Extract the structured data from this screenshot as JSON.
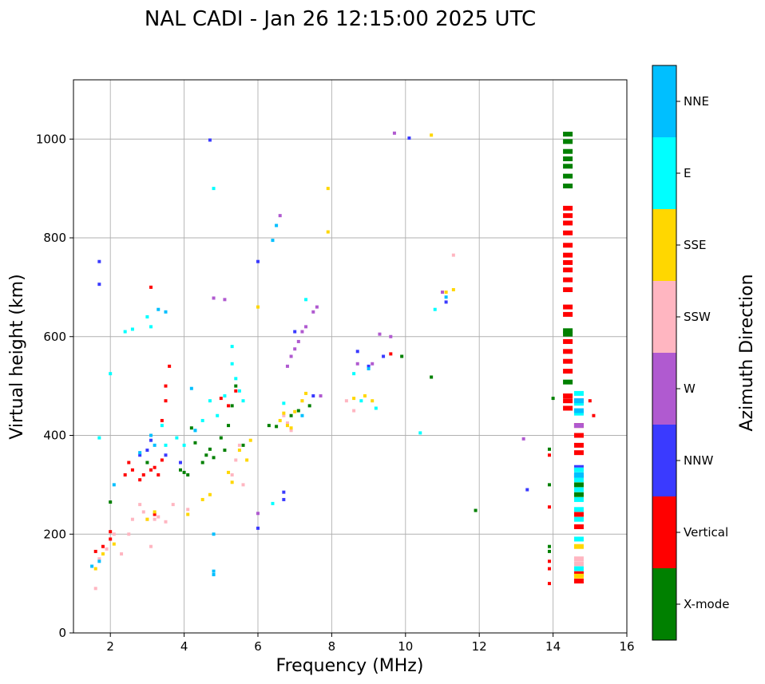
{
  "chart_data": {
    "type": "scatter",
    "title": "NAL CADI - Jan 26 12:15:00 2025 UTC",
    "xlabel": "Frequency (MHz)",
    "ylabel": "Virtual height (km)",
    "xlim": [
      1,
      16
    ],
    "ylim": [
      0,
      1120
    ],
    "xticks": [
      2,
      4,
      6,
      8,
      10,
      12,
      14,
      16
    ],
    "yticks": [
      0,
      200,
      400,
      600,
      800,
      1000
    ],
    "grid": true,
    "colorbar": {
      "label": "Azimuth Direction",
      "categories": [
        {
          "name": "X-mode",
          "color": "#008000"
        },
        {
          "name": "Vertical",
          "color": "#ff0000"
        },
        {
          "name": "NNW",
          "color": "#3a3aff"
        },
        {
          "name": "W",
          "color": "#b05ad0"
        },
        {
          "name": "SSW",
          "color": "#ffb6c1"
        },
        {
          "name": "SSE",
          "color": "#ffd700"
        },
        {
          "name": "E",
          "color": "#00ffff"
        },
        {
          "name": "NNE",
          "color": "#00bfff"
        }
      ]
    },
    "series": [
      {
        "name": "X-mode",
        "points": [
          [
            2.0,
            265
          ],
          [
            3.0,
            345
          ],
          [
            3.9,
            330
          ],
          [
            4.0,
            325
          ],
          [
            4.1,
            320
          ],
          [
            4.2,
            415
          ],
          [
            4.3,
            385
          ],
          [
            4.5,
            345
          ],
          [
            4.6,
            360
          ],
          [
            4.7,
            372
          ],
          [
            4.8,
            355
          ],
          [
            5.0,
            395
          ],
          [
            5.1,
            370
          ],
          [
            5.2,
            420
          ],
          [
            5.3,
            460
          ],
          [
            5.4,
            500
          ],
          [
            5.6,
            380
          ],
          [
            6.3,
            420
          ],
          [
            6.5,
            418
          ],
          [
            6.9,
            440
          ],
          [
            7.1,
            450
          ],
          [
            7.4,
            460
          ],
          [
            9.9,
            560
          ],
          [
            10.7,
            518
          ],
          [
            11.9,
            248
          ],
          [
            13.9,
            372
          ],
          [
            13.9,
            300
          ],
          [
            13.9,
            175
          ],
          [
            13.9,
            165
          ],
          [
            14.0,
            475
          ],
          [
            14.4,
            1010
          ],
          [
            14.4,
            995
          ],
          [
            14.4,
            975
          ],
          [
            14.4,
            960
          ],
          [
            14.4,
            945
          ],
          [
            14.4,
            925
          ],
          [
            14.4,
            905
          ],
          [
            14.4,
            612
          ],
          [
            14.4,
            605
          ],
          [
            14.4,
            508
          ],
          [
            14.7,
            300
          ],
          [
            14.7,
            280
          ]
        ]
      },
      {
        "name": "Vertical",
        "points": [
          [
            1.6,
            165
          ],
          [
            1.8,
            175
          ],
          [
            2.0,
            190
          ],
          [
            2.0,
            205
          ],
          [
            2.4,
            320
          ],
          [
            2.5,
            345
          ],
          [
            2.6,
            330
          ],
          [
            2.8,
            310
          ],
          [
            2.9,
            320
          ],
          [
            3.1,
            330
          ],
          [
            3.2,
            335
          ],
          [
            3.3,
            320
          ],
          [
            3.4,
            350
          ],
          [
            3.4,
            430
          ],
          [
            3.5,
            470
          ],
          [
            3.5,
            500
          ],
          [
            3.6,
            540
          ],
          [
            3.1,
            700
          ],
          [
            3.2,
            240
          ],
          [
            5.0,
            475
          ],
          [
            5.2,
            460
          ],
          [
            5.4,
            490
          ],
          [
            9.6,
            565
          ],
          [
            13.9,
            360
          ],
          [
            13.9,
            255
          ],
          [
            13.9,
            145
          ],
          [
            13.9,
            130
          ],
          [
            13.9,
            100
          ],
          [
            14.4,
            860
          ],
          [
            14.4,
            845
          ],
          [
            14.4,
            830
          ],
          [
            14.4,
            810
          ],
          [
            14.4,
            785
          ],
          [
            14.4,
            765
          ],
          [
            14.4,
            750
          ],
          [
            14.4,
            735
          ],
          [
            14.4,
            715
          ],
          [
            14.4,
            695
          ],
          [
            14.4,
            660
          ],
          [
            14.4,
            645
          ],
          [
            14.4,
            590
          ],
          [
            14.4,
            570
          ],
          [
            14.4,
            550
          ],
          [
            14.4,
            530
          ],
          [
            14.4,
            480
          ],
          [
            14.4,
            470
          ],
          [
            14.4,
            455
          ],
          [
            14.7,
            420
          ],
          [
            14.7,
            400
          ],
          [
            14.7,
            380
          ],
          [
            14.7,
            365
          ],
          [
            14.7,
            240
          ],
          [
            14.7,
            215
          ],
          [
            14.7,
            120
          ],
          [
            14.7,
            105
          ],
          [
            15.0,
            470
          ],
          [
            15.1,
            440
          ]
        ]
      },
      {
        "name": "NNW",
        "points": [
          [
            1.7,
            752
          ],
          [
            1.7,
            706
          ],
          [
            2.8,
            360
          ],
          [
            3.0,
            370
          ],
          [
            3.1,
            390
          ],
          [
            3.5,
            360
          ],
          [
            3.9,
            345
          ],
          [
            4.7,
            998
          ],
          [
            6.0,
            752
          ],
          [
            6.0,
            212
          ],
          [
            6.7,
            285
          ],
          [
            6.7,
            270
          ],
          [
            7.0,
            610
          ],
          [
            7.5,
            480
          ],
          [
            8.7,
            570
          ],
          [
            9.0,
            540
          ],
          [
            9.4,
            560
          ],
          [
            10.1,
            1002
          ],
          [
            11.1,
            670
          ],
          [
            13.3,
            290
          ],
          [
            14.7,
            470
          ],
          [
            14.7,
            335
          ],
          [
            14.7,
            318
          ]
        ]
      },
      {
        "name": "W",
        "points": [
          [
            4.8,
            678
          ],
          [
            5.1,
            675
          ],
          [
            6.0,
            242
          ],
          [
            6.6,
            845
          ],
          [
            6.8,
            540
          ],
          [
            6.9,
            560
          ],
          [
            7.0,
            575
          ],
          [
            7.1,
            590
          ],
          [
            7.2,
            610
          ],
          [
            7.3,
            620
          ],
          [
            7.5,
            650
          ],
          [
            7.6,
            660
          ],
          [
            7.7,
            480
          ],
          [
            8.7,
            545
          ],
          [
            9.1,
            545
          ],
          [
            9.3,
            605
          ],
          [
            9.6,
            600
          ],
          [
            9.7,
            1012
          ],
          [
            11.0,
            690
          ],
          [
            13.2,
            393
          ],
          [
            14.7,
            420
          ]
        ]
      },
      {
        "name": "SSW",
        "points": [
          [
            1.6,
            90
          ],
          [
            1.7,
            150
          ],
          [
            1.9,
            170
          ],
          [
            2.1,
            200
          ],
          [
            2.3,
            160
          ],
          [
            2.5,
            200
          ],
          [
            2.6,
            230
          ],
          [
            2.8,
            260
          ],
          [
            2.9,
            245
          ],
          [
            3.0,
            230
          ],
          [
            3.1,
            175
          ],
          [
            3.2,
            230
          ],
          [
            3.3,
            235
          ],
          [
            3.5,
            225
          ],
          [
            3.7,
            260
          ],
          [
            4.1,
            250
          ],
          [
            5.3,
            320
          ],
          [
            5.4,
            350
          ],
          [
            5.5,
            380
          ],
          [
            5.6,
            300
          ],
          [
            6.7,
            440
          ],
          [
            6.8,
            425
          ],
          [
            6.9,
            410
          ],
          [
            7.2,
            470
          ],
          [
            8.4,
            470
          ],
          [
            8.6,
            450
          ],
          [
            11.3,
            765
          ],
          [
            14.7,
            330
          ],
          [
            14.7,
            150
          ],
          [
            14.7,
            140
          ]
        ]
      },
      {
        "name": "SSE",
        "points": [
          [
            1.6,
            130
          ],
          [
            1.8,
            160
          ],
          [
            2.1,
            180
          ],
          [
            3.0,
            230
          ],
          [
            3.2,
            245
          ],
          [
            4.1,
            240
          ],
          [
            4.5,
            270
          ],
          [
            4.7,
            280
          ],
          [
            5.2,
            325
          ],
          [
            5.3,
            305
          ],
          [
            5.5,
            370
          ],
          [
            5.7,
            350
          ],
          [
            5.8,
            390
          ],
          [
            6.0,
            660
          ],
          [
            6.6,
            430
          ],
          [
            6.7,
            445
          ],
          [
            6.8,
            420
          ],
          [
            6.9,
            415
          ],
          [
            7.0,
            448
          ],
          [
            7.2,
            470
          ],
          [
            7.3,
            485
          ],
          [
            7.9,
            900
          ],
          [
            7.9,
            812
          ],
          [
            8.6,
            475
          ],
          [
            8.9,
            480
          ],
          [
            9.1,
            470
          ],
          [
            10.7,
            1008
          ],
          [
            11.3,
            695
          ],
          [
            11.1,
            690
          ],
          [
            14.7,
            175
          ],
          [
            14.7,
            115
          ]
        ]
      },
      {
        "name": "E",
        "points": [
          [
            1.7,
            395
          ],
          [
            2.0,
            525
          ],
          [
            2.4,
            610
          ],
          [
            2.6,
            615
          ],
          [
            3.0,
            640
          ],
          [
            3.1,
            620
          ],
          [
            3.4,
            420
          ],
          [
            3.5,
            380
          ],
          [
            3.8,
            395
          ],
          [
            4.0,
            380
          ],
          [
            4.3,
            410
          ],
          [
            4.5,
            430
          ],
          [
            4.7,
            470
          ],
          [
            4.8,
            900
          ],
          [
            4.9,
            440
          ],
          [
            5.1,
            480
          ],
          [
            5.3,
            545
          ],
          [
            5.3,
            580
          ],
          [
            5.4,
            515
          ],
          [
            5.5,
            490
          ],
          [
            5.6,
            470
          ],
          [
            6.4,
            262
          ],
          [
            6.7,
            465
          ],
          [
            7.3,
            675
          ],
          [
            8.6,
            525
          ],
          [
            8.8,
            470
          ],
          [
            9.2,
            455
          ],
          [
            10.4,
            405
          ],
          [
            10.8,
            655
          ],
          [
            14.7,
            485
          ],
          [
            14.7,
            465
          ],
          [
            14.7,
            445
          ],
          [
            14.7,
            330
          ],
          [
            14.7,
            310
          ],
          [
            14.7,
            290
          ],
          [
            14.7,
            270
          ],
          [
            14.7,
            250
          ],
          [
            14.7,
            230
          ],
          [
            14.7,
            190
          ],
          [
            14.7,
            130
          ]
        ]
      },
      {
        "name": "NNE",
        "points": [
          [
            1.5,
            135
          ],
          [
            1.7,
            145
          ],
          [
            2.1,
            300
          ],
          [
            2.8,
            365
          ],
          [
            3.1,
            400
          ],
          [
            3.2,
            380
          ],
          [
            3.3,
            655
          ],
          [
            3.5,
            650
          ],
          [
            4.2,
            495
          ],
          [
            4.3,
            410
          ],
          [
            4.8,
            200
          ],
          [
            4.8,
            125
          ],
          [
            4.8,
            118
          ],
          [
            6.4,
            795
          ],
          [
            6.5,
            825
          ],
          [
            7.2,
            440
          ],
          [
            9.0,
            535
          ],
          [
            11.1,
            680
          ],
          [
            14.7,
            470
          ],
          [
            14.7,
            450
          ],
          [
            14.7,
            320
          ]
        ]
      }
    ]
  }
}
